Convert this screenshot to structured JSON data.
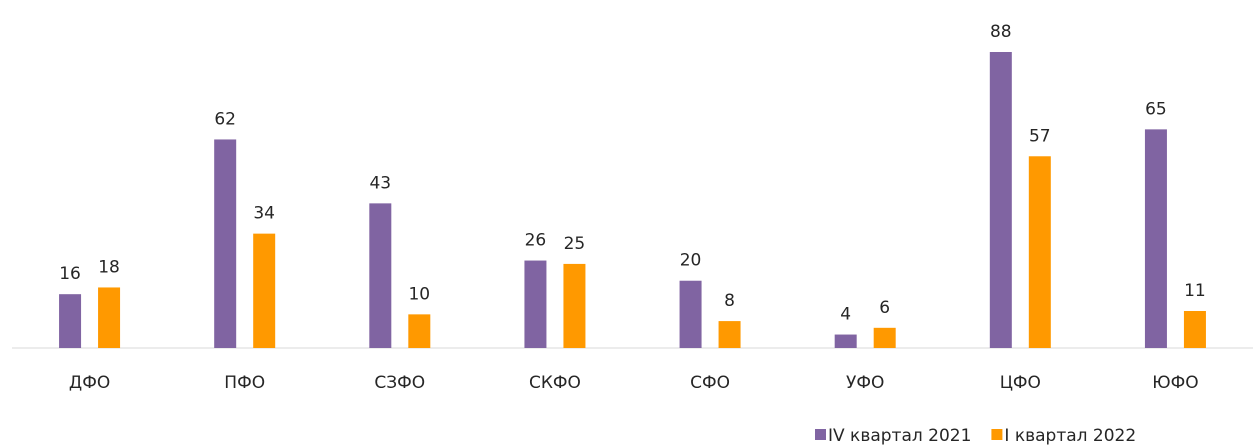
{
  "chart_data": {
    "type": "bar",
    "categories": [
      "ДФО",
      "ПФО",
      "СЗФО",
      "СКФО",
      "СФО",
      "УФО",
      "ЦФО",
      "ЮФО"
    ],
    "series": [
      {
        "name": "IV квартал 2021",
        "color": "#8064a2",
        "values": [
          16,
          62,
          43,
          26,
          20,
          4,
          88,
          65
        ]
      },
      {
        "name": "I квартал 2022",
        "color": "#ff9900",
        "values": [
          18,
          34,
          10,
          25,
          8,
          6,
          57,
          11
        ]
      }
    ],
    "legend": "bottom-right"
  }
}
